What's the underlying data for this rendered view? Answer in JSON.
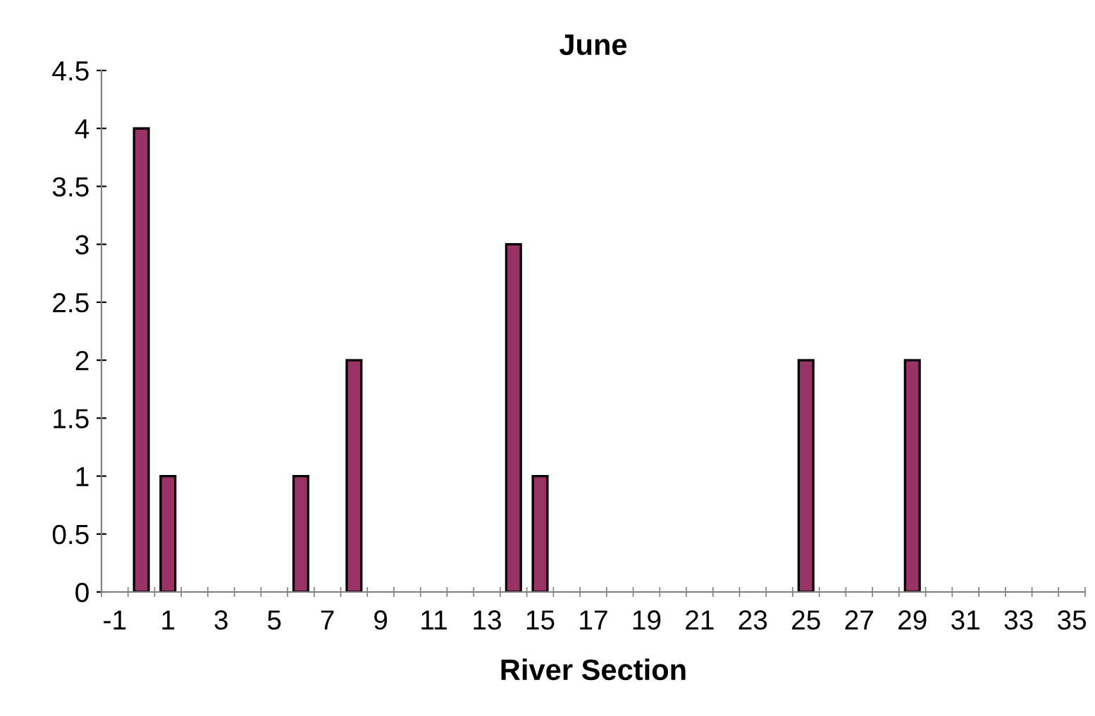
{
  "chart_data": {
    "type": "bar",
    "title": "June",
    "xlabel": "River Section",
    "categories": [
      "-1",
      null,
      "1",
      null,
      "3",
      null,
      "5",
      null,
      "7",
      null,
      "9",
      null,
      "11",
      null,
      "13",
      null,
      "15",
      null,
      "17",
      null,
      "19",
      null,
      "21",
      null,
      "23",
      null,
      "25",
      null,
      "27",
      null,
      "29",
      null,
      "31",
      null,
      "33",
      null,
      "35"
    ],
    "values": [
      0,
      4,
      1,
      0,
      0,
      0,
      0,
      1,
      0,
      2,
      0,
      0,
      0,
      0,
      0,
      3,
      1,
      0,
      0,
      0,
      0,
      0,
      0,
      0,
      0,
      0,
      2,
      0,
      0,
      0,
      2,
      0,
      0,
      0,
      0,
      0,
      0
    ],
    "color": "#993366",
    "ylim": [
      0,
      4.5
    ],
    "yticks": [
      0,
      0.5,
      1,
      1.5,
      2,
      2.5,
      3,
      3.5,
      4,
      4.5
    ],
    "grid": false
  }
}
